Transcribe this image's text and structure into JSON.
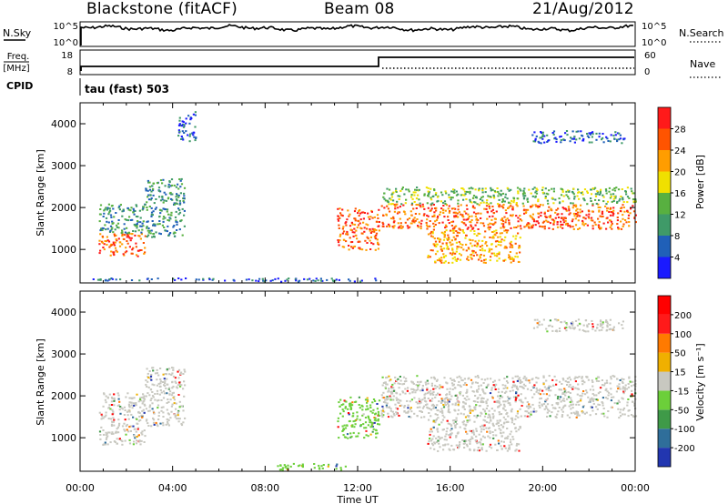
{
  "header": {
    "station": "Blackstone (fitACF)",
    "beam": "Beam 08",
    "date": "21/Aug/2012"
  },
  "top_panels": {
    "nsky_label": "N.Sky",
    "nsearch_label": "N.Search",
    "nsky_ticks": [
      "10^5",
      "10^0"
    ],
    "nsearch_ticks": [
      "10^5",
      "10^0"
    ],
    "freq_label_1": "Freq.",
    "freq_label_2": "[MHz]",
    "freq_ticks": [
      "18",
      "8"
    ],
    "nave_label": "Nave",
    "nave_ticks": [
      "60",
      "0"
    ],
    "cpid_label": "CPID",
    "cpid_value": "tau (fast) 503",
    "colors": {
      "line": "#000000"
    }
  },
  "chart_data": [
    {
      "type": "heatmap",
      "name": "power",
      "ylabel": "Slant Range [km]",
      "xlabel": "",
      "x_ticks": [
        "00:00",
        "04:00",
        "08:00",
        "12:00",
        "16:00",
        "20:00",
        "00:00"
      ],
      "y_ticks": [
        1000,
        2000,
        3000,
        4000
      ],
      "ylim": [
        200,
        4500
      ],
      "xlim_hours": [
        0,
        24
      ],
      "colorbar": {
        "label": "Power [dB]",
        "ticks": [
          4,
          8,
          12,
          16,
          20,
          24,
          28
        ],
        "range": [
          0,
          32
        ],
        "colors": [
          "#1a1aff",
          "#2060b8",
          "#3f9a68",
          "#58b040",
          "#f0e000",
          "#ff9d00",
          "#ff5400",
          "#ff1a1a"
        ]
      },
      "regions": [
        {
          "t": [
            0.8,
            2.8
          ],
          "r": [
            850,
            1400
          ],
          "level": 6
        },
        {
          "t": [
            0.8,
            2.8
          ],
          "r": [
            1400,
            2100
          ],
          "level": 2
        },
        {
          "t": [
            2.8,
            4.5
          ],
          "r": [
            1300,
            2700
          ],
          "level": 2
        },
        {
          "t": [
            4.2,
            5.0
          ],
          "r": [
            3600,
            4300
          ],
          "level": 1
        },
        {
          "t": [
            11.1,
            12.9
          ],
          "r": [
            1000,
            2000
          ],
          "level": 6
        },
        {
          "t": [
            13.0,
            24.0
          ],
          "r": [
            1500,
            2100
          ],
          "level": 6
        },
        {
          "t": [
            13.0,
            24.0
          ],
          "r": [
            2100,
            2500
          ],
          "level": 3
        },
        {
          "t": [
            15.0,
            19.0
          ],
          "r": [
            700,
            1500
          ],
          "level": 5
        },
        {
          "t": [
            19.5,
            23.5
          ],
          "r": [
            3550,
            3850
          ],
          "level": 1
        },
        {
          "t": [
            0.5,
            13.0
          ],
          "r": [
            250,
            330
          ],
          "level": 1
        }
      ]
    },
    {
      "type": "heatmap",
      "name": "velocity",
      "ylabel": "Slant Range [km]",
      "xlabel": "Time UT",
      "x_ticks": [
        "00:00",
        "04:00",
        "08:00",
        "12:00",
        "16:00",
        "20:00",
        "00:00"
      ],
      "y_ticks": [
        1000,
        2000,
        3000,
        4000
      ],
      "ylim": [
        200,
        4500
      ],
      "xlim_hours": [
        0,
        24
      ],
      "colorbar": {
        "label": "Velocity [m s⁻¹]",
        "ticks": [
          "200",
          "100",
          "50",
          "15",
          "-15",
          "-50",
          "-100",
          "-200"
        ],
        "colors": [
          "#2236b0",
          "#2f6e9a",
          "#3f9a48",
          "#6ccf3a",
          "#c8c8c0",
          "#f0b000",
          "#ff7a00",
          "#ff1a1a",
          "#ff0000"
        ]
      },
      "regions": [
        {
          "t": [
            0.8,
            2.8
          ],
          "r": [
            850,
            1400
          ],
          "level": 4
        },
        {
          "t": [
            0.8,
            2.8
          ],
          "r": [
            1400,
            2100
          ],
          "level": 4
        },
        {
          "t": [
            2.8,
            4.5
          ],
          "r": [
            1300,
            2700
          ],
          "level": 4
        },
        {
          "t": [
            11.1,
            12.9
          ],
          "r": [
            1000,
            2000
          ],
          "level": 3
        },
        {
          "t": [
            13.0,
            24.0
          ],
          "r": [
            1500,
            2100
          ],
          "level": 4
        },
        {
          "t": [
            13.0,
            24.0
          ],
          "r": [
            2100,
            2500
          ],
          "level": 4
        },
        {
          "t": [
            15.0,
            19.0
          ],
          "r": [
            700,
            1500
          ],
          "level": 4
        },
        {
          "t": [
            19.5,
            23.5
          ],
          "r": [
            3550,
            3850
          ],
          "level": 4
        },
        {
          "t": [
            8.5,
            11.5
          ],
          "r": [
            250,
            400
          ],
          "level": 3
        }
      ]
    }
  ]
}
